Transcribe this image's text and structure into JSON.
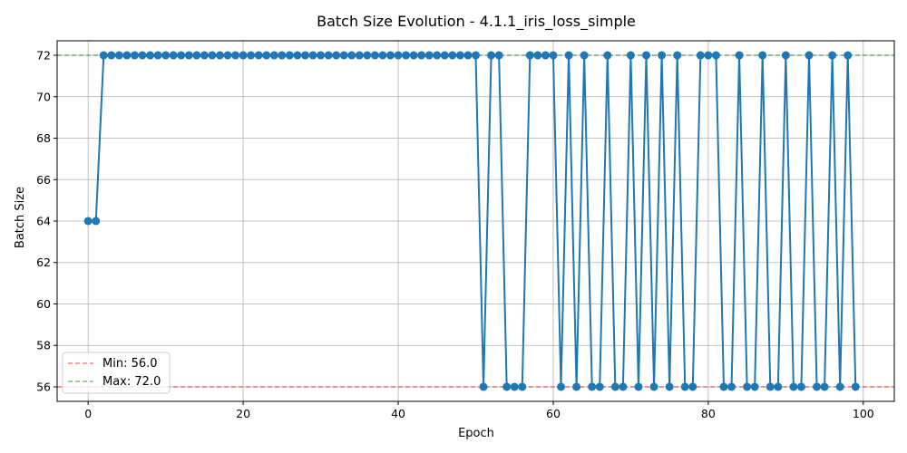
{
  "chart_data": {
    "type": "line",
    "title": "Batch Size Evolution - 4.1.1_iris_loss_simple",
    "xlabel": "Epoch",
    "ylabel": "Batch Size",
    "xlim": [
      -4,
      104
    ],
    "ylim": [
      55.3,
      72.7
    ],
    "xticks": [
      0,
      20,
      40,
      60,
      80,
      100
    ],
    "yticks": [
      56,
      58,
      60,
      62,
      64,
      66,
      68,
      70,
      72
    ],
    "grid": true,
    "legend_position": "lower-left",
    "series": [
      {
        "color": "#1f77b4",
        "marker": "circle",
        "x": [
          0,
          1,
          2,
          3,
          4,
          5,
          6,
          7,
          8,
          9,
          10,
          11,
          12,
          13,
          14,
          15,
          16,
          17,
          18,
          19,
          20,
          21,
          22,
          23,
          24,
          25,
          26,
          27,
          28,
          29,
          30,
          31,
          32,
          33,
          34,
          35,
          36,
          37,
          38,
          39,
          40,
          41,
          42,
          43,
          44,
          45,
          46,
          47,
          48,
          49,
          50,
          51,
          52,
          53,
          54,
          55,
          56,
          57,
          58,
          59,
          60,
          61,
          62,
          63,
          64,
          65,
          66,
          67,
          68,
          69,
          70,
          71,
          72,
          73,
          74,
          75,
          76,
          77,
          78,
          79,
          80,
          81,
          82,
          83,
          84,
          85,
          86,
          87,
          88,
          89,
          90,
          91,
          92,
          93,
          94,
          95,
          96,
          97,
          98,
          99
        ],
        "y": [
          64,
          64,
          72,
          72,
          72,
          72,
          72,
          72,
          72,
          72,
          72,
          72,
          72,
          72,
          72,
          72,
          72,
          72,
          72,
          72,
          72,
          72,
          72,
          72,
          72,
          72,
          72,
          72,
          72,
          72,
          72,
          72,
          72,
          72,
          72,
          72,
          72,
          72,
          72,
          72,
          72,
          72,
          72,
          72,
          72,
          72,
          72,
          72,
          72,
          72,
          72,
          56,
          72,
          72,
          56,
          56,
          56,
          72,
          72,
          72,
          72,
          56,
          72,
          56,
          72,
          56,
          56,
          72,
          56,
          56,
          72,
          56,
          72,
          56,
          72,
          56,
          72,
          56,
          56,
          72,
          72,
          72,
          56,
          56,
          72,
          56,
          56,
          72,
          56,
          56,
          72,
          56,
          56,
          72,
          56,
          56,
          72,
          56,
          72,
          56
        ]
      }
    ],
    "reference_lines": [
      {
        "name": "Min: 56.0",
        "value": 56,
        "color": "#ff0000",
        "style": "dashed"
      },
      {
        "name": "Max: 72.0",
        "value": 72,
        "color": "#008000",
        "style": "dashed"
      }
    ]
  }
}
